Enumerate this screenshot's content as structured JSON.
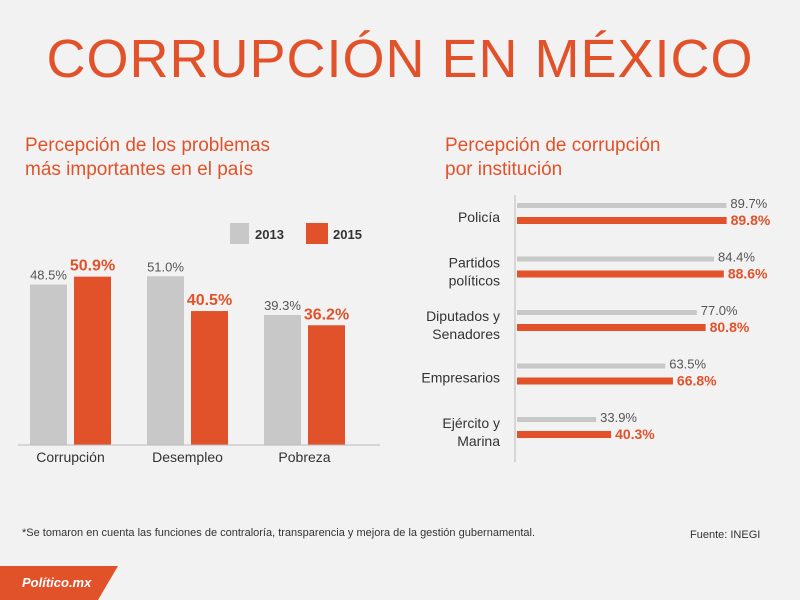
{
  "title": "CORRUPCIÓN EN MÉXICO",
  "colors": {
    "accent": "#e2522a",
    "gray": "#c8c8c8",
    "axis": "#bbbbbb",
    "background": "#f2f2f2"
  },
  "chart_data": [
    {
      "type": "bar",
      "title": "Percepción de los problemas más importantes en el país",
      "title_lines": [
        "Percepción de los problemas",
        "más importantes en el país"
      ],
      "categories": [
        "Corrupción",
        "Desempleo",
        "Pobreza"
      ],
      "series": [
        {
          "name": "2013",
          "values": [
            48.5,
            51.0,
            39.3
          ],
          "labels": [
            "48.5%",
            "51.0%",
            "39.3%"
          ]
        },
        {
          "name": "2015",
          "values": [
            50.9,
            40.5,
            36.2
          ],
          "labels": [
            "50.9%",
            "40.5%",
            "36.2%"
          ]
        }
      ],
      "ylim": [
        0,
        65
      ],
      "legend_position": "top-right"
    },
    {
      "type": "bar",
      "orientation": "horizontal",
      "title": "Percepción de corrupción por institución",
      "title_lines": [
        "Percepción de corrupción",
        "por institución"
      ],
      "categories": [
        [
          "Policía"
        ],
        [
          "Partidos",
          "políticos"
        ],
        [
          "Diputados y",
          "Senadores"
        ],
        [
          "Empresarios"
        ],
        [
          "Ejército y",
          "Marina"
        ]
      ],
      "series": [
        {
          "name": "2013",
          "values": [
            89.7,
            84.4,
            77.0,
            63.5,
            33.9
          ],
          "labels": [
            "89.7%",
            "84.4%",
            "77.0%",
            "63.5%",
            "33.9%"
          ]
        },
        {
          "name": "2015",
          "values": [
            89.8,
            88.6,
            80.8,
            66.8,
            40.3
          ],
          "labels": [
            "89.8%",
            "88.6%",
            "80.8%",
            "66.8%",
            "40.3%"
          ]
        }
      ],
      "xlim": [
        0,
        100
      ]
    }
  ],
  "footnote": "*Se tomaron en cuenta las funciones de contraloría, transparencia y mejora de la gestión gubernamental.",
  "source": "Fuente: INEGI",
  "footer": {
    "logo": "Político.mx"
  }
}
